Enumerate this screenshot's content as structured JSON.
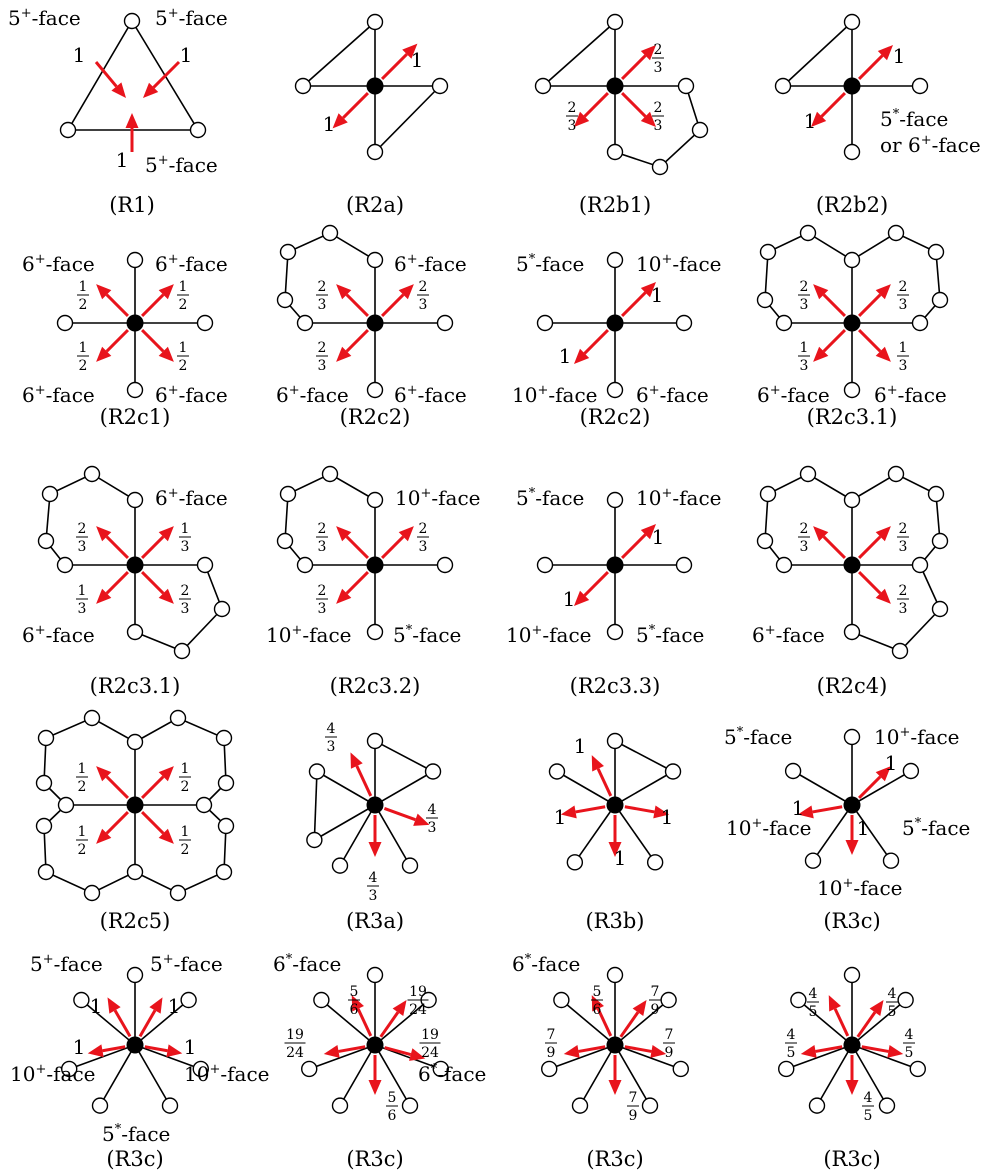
{
  "colors": {
    "arrow": "#e8141c",
    "edge": "#000000",
    "vertex_fill": "#ffffff",
    "center_vertex": "#000000"
  },
  "panels": [
    {
      "caption": "(R1)",
      "labels": [
        {
          "base": "5",
          "sup": "+",
          "rest": "-face"
        },
        {
          "base": "5",
          "sup": "+",
          "rest": "-face"
        },
        {
          "base": "5",
          "sup": "+",
          "rest": "-face"
        }
      ],
      "charges": [
        "1",
        "1",
        "1"
      ]
    },
    {
      "caption": "(R2a)",
      "labels": [],
      "charges": [
        "1",
        "1"
      ]
    },
    {
      "caption": "(R2b1)",
      "labels": [],
      "charges": [
        "2/3",
        "2/3",
        "2/3"
      ]
    },
    {
      "caption": "(R2b2)",
      "labels": [
        {
          "base": "5",
          "sup": "*",
          "rest": "-face"
        },
        {
          "base": "or 6",
          "sup": "+",
          "rest": "-face"
        }
      ],
      "charges": [
        "1",
        "1"
      ]
    },
    {
      "caption": "(R2c1)",
      "labels": [
        {
          "base": "6",
          "sup": "+",
          "rest": "-face"
        },
        {
          "base": "6",
          "sup": "+",
          "rest": "-face"
        },
        {
          "base": "6",
          "sup": "+",
          "rest": "-face"
        },
        {
          "base": "6",
          "sup": "+",
          "rest": "-face"
        }
      ],
      "charges": [
        "1/2",
        "1/2",
        "1/2",
        "1/2"
      ]
    },
    {
      "caption": "(R2c2)",
      "labels": [
        {
          "base": "6",
          "sup": "+",
          "rest": "-face"
        },
        {
          "base": "6",
          "sup": "+",
          "rest": "-face"
        },
        {
          "base": "6",
          "sup": "+",
          "rest": "-face"
        }
      ],
      "charges": [
        "2/3",
        "2/3",
        "2/3"
      ]
    },
    {
      "caption": "(R2c2)",
      "labels": [
        {
          "base": "5",
          "sup": "*",
          "rest": "-face"
        },
        {
          "base": "10",
          "sup": "+",
          "rest": "-face"
        },
        {
          "base": "10",
          "sup": "+",
          "rest": "-face"
        },
        {
          "base": "6",
          "sup": "+",
          "rest": "-face"
        }
      ],
      "charges": [
        "1",
        "1"
      ]
    },
    {
      "caption": "(R2c3.1)",
      "labels": [
        {
          "base": "6",
          "sup": "+",
          "rest": "-face"
        },
        {
          "base": "6",
          "sup": "+",
          "rest": "-face"
        }
      ],
      "charges": [
        "2/3",
        "2/3",
        "1/3",
        "1/3"
      ]
    },
    {
      "caption": "(R2c3.1)",
      "labels": [
        {
          "base": "6",
          "sup": "+",
          "rest": "-face"
        },
        {
          "base": "6",
          "sup": "+",
          "rest": "-face"
        }
      ],
      "charges": [
        "2/3",
        "1/3",
        "1/3",
        "2/3"
      ]
    },
    {
      "caption": "(R2c3.2)",
      "labels": [
        {
          "base": "10",
          "sup": "+",
          "rest": "-face"
        },
        {
          "base": "10",
          "sup": "+",
          "rest": "-face"
        },
        {
          "base": "5",
          "sup": "*",
          "rest": "-face"
        }
      ],
      "charges": [
        "2/3",
        "2/3",
        "2/3"
      ]
    },
    {
      "caption": "(R2c3.3)",
      "labels": [
        {
          "base": "5",
          "sup": "*",
          "rest": "-face"
        },
        {
          "base": "10",
          "sup": "+",
          "rest": "-face"
        },
        {
          "base": "10",
          "sup": "+",
          "rest": "-face"
        },
        {
          "base": "5",
          "sup": "*",
          "rest": "-face"
        }
      ],
      "charges": [
        "1",
        "1"
      ]
    },
    {
      "caption": "(R2c4)",
      "labels": [
        {
          "base": "6",
          "sup": "+",
          "rest": "-face"
        }
      ],
      "charges": [
        "2/3",
        "2/3",
        "2/3"
      ]
    },
    {
      "caption": "(R2c5)",
      "labels": [],
      "charges": [
        "1/2",
        "1/2",
        "1/2",
        "1/2"
      ]
    },
    {
      "caption": "(R3a)",
      "labels": [],
      "charges": [
        "4/3",
        "4/3",
        "4/3"
      ]
    },
    {
      "caption": "(R3b)",
      "labels": [],
      "charges": [
        "1",
        "1",
        "1",
        "1"
      ]
    },
    {
      "caption": "(R3c)",
      "labels": [
        {
          "base": "5",
          "sup": "*",
          "rest": "-face"
        },
        {
          "base": "10",
          "sup": "+",
          "rest": "-face"
        },
        {
          "base": "10",
          "sup": "+",
          "rest": "-face"
        },
        {
          "base": "5",
          "sup": "*",
          "rest": "-face"
        },
        {
          "base": "10",
          "sup": "+",
          "rest": "-face"
        }
      ],
      "charges": [
        "1",
        "1",
        "1"
      ]
    },
    {
      "caption": "(R3c)",
      "labels": [
        {
          "base": "5",
          "sup": "+",
          "rest": "-face"
        },
        {
          "base": "5",
          "sup": "+",
          "rest": "-face"
        },
        {
          "base": "10",
          "sup": "+",
          "rest": "-face"
        },
        {
          "base": "10",
          "sup": "+",
          "rest": "-face"
        },
        {
          "base": "5",
          "sup": "*",
          "rest": "-face"
        }
      ],
      "charges": [
        "1",
        "1",
        "1",
        "1"
      ]
    },
    {
      "caption": "(R3c)",
      "labels": [
        {
          "base": "6",
          "sup": "*",
          "rest": "-face"
        },
        {
          "base": "6",
          "sup": "*",
          "rest": "-face"
        }
      ],
      "charges": [
        "5/6",
        "19/24",
        "19/24",
        "19/24",
        "5/6"
      ]
    },
    {
      "caption": "(R3c)",
      "labels": [
        {
          "base": "6",
          "sup": "*",
          "rest": "-face"
        }
      ],
      "charges": [
        "5/6",
        "7/9",
        "7/9",
        "7/9",
        "7/9"
      ]
    },
    {
      "caption": "(R3c)",
      "labels": [],
      "charges": [
        "4/5",
        "4/5",
        "4/5",
        "4/5",
        "4/5"
      ]
    }
  ]
}
